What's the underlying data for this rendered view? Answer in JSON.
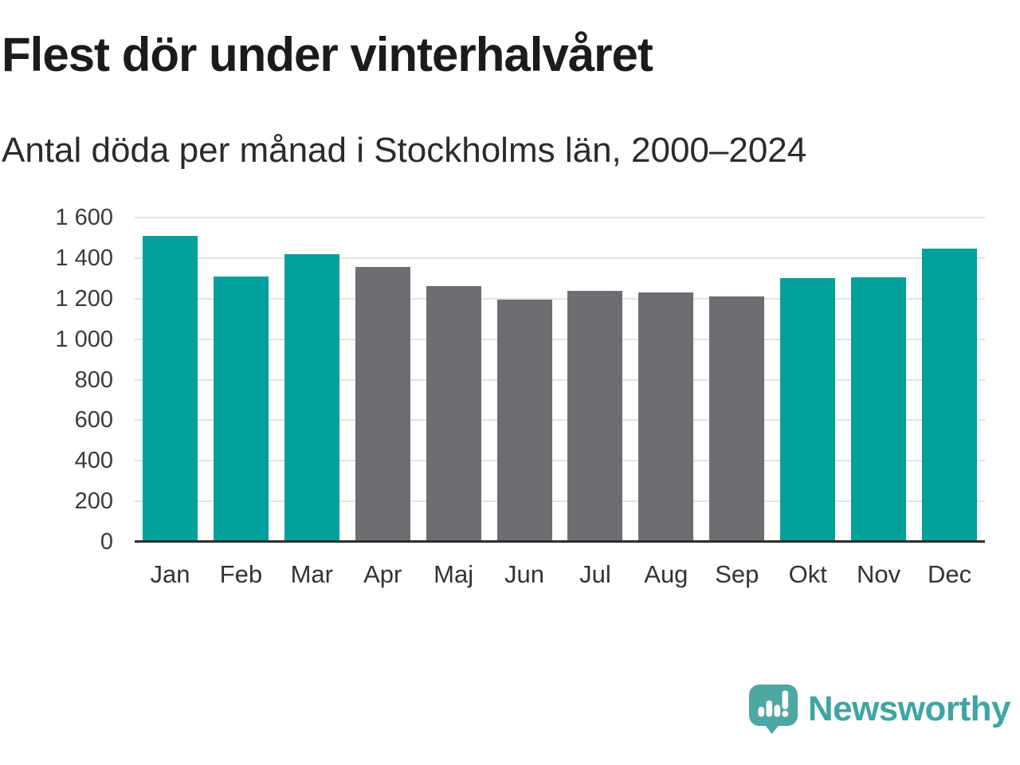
{
  "page": {
    "background": "#ffffff"
  },
  "chart_data": {
    "type": "bar",
    "title": "Flest dör under vinterhalvåret",
    "subtitle": "Antal döda per månad i Stockholms län, 2000–2024",
    "categories": [
      "Jan",
      "Feb",
      "Mar",
      "Apr",
      "Maj",
      "Jun",
      "Jul",
      "Aug",
      "Sep",
      "Okt",
      "Nov",
      "Dec"
    ],
    "values": [
      1510,
      1310,
      1420,
      1355,
      1260,
      1195,
      1240,
      1230,
      1210,
      1300,
      1305,
      1445
    ],
    "bar_color_keys": [
      "winter_teal",
      "winter_teal",
      "winter_teal",
      "summer_gray",
      "summer_gray",
      "summer_gray",
      "summer_gray",
      "summer_gray",
      "summer_gray",
      "winter_teal",
      "winter_teal",
      "winter_teal"
    ],
    "colors": {
      "winter_teal": "#00a19a",
      "summer_gray": "#6e6e72"
    },
    "xlabel": "",
    "ylabel": "",
    "ylim": [
      0,
      1600
    ],
    "yticks": [
      {
        "value": 1600,
        "label": "1 600"
      },
      {
        "value": 1400,
        "label": "1 400"
      },
      {
        "value": 1200,
        "label": "1 200"
      },
      {
        "value": 1000,
        "label": "1 000"
      },
      {
        "value": 800,
        "label": "800"
      },
      {
        "value": 600,
        "label": "600"
      },
      {
        "value": 400,
        "label": "400"
      },
      {
        "value": 200,
        "label": "200"
      },
      {
        "value": 0,
        "label": "0"
      }
    ],
    "grid": "horizontal",
    "gridline_color": "#e3e3e3",
    "axis_color": "#2e2e2e",
    "tick_text_color": "#3a3a3a",
    "legend": "none"
  },
  "footer": {
    "brand": "Newsworthy",
    "brand_color": "#3fa5a2",
    "logo_icon": "newsworthy-speech-bubble-bar-chart-icon",
    "logo_color": "#4da7a3"
  }
}
